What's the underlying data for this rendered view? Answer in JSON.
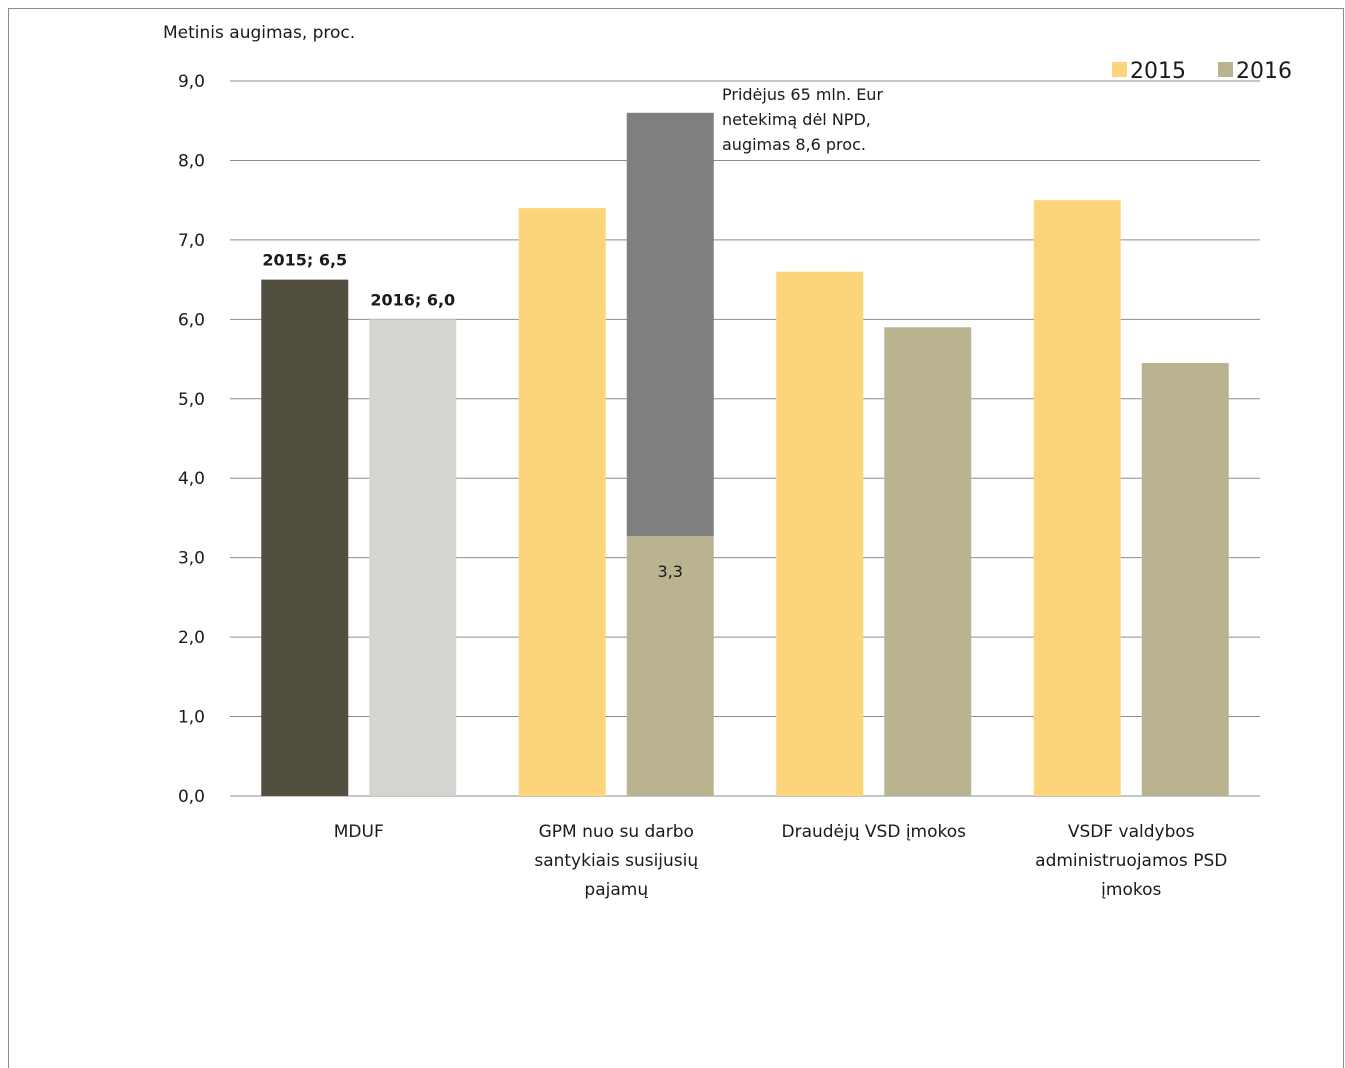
{
  "chart_data": {
    "type": "bar",
    "ylabel": "Metinis augimas, proc.",
    "ylim": [
      0,
      9
    ],
    "yticks": [
      "0,0",
      "1,0",
      "2,0",
      "3,0",
      "4,0",
      "5,0",
      "6,0",
      "7,0",
      "8,0",
      "9,0"
    ],
    "grid": true,
    "legend_position": "top-right",
    "categories": [
      [
        "MDUF"
      ],
      [
        "GPM nuo  su darbo",
        "santykiais susijusių",
        "pajamų"
      ],
      [
        "Draudėjų VSD įmokos"
      ],
      [
        "VSDF valdybos",
        "administruojamos PSD",
        "įmokos"
      ]
    ],
    "series": [
      {
        "name": "2015",
        "values": [
          6.5,
          7.4,
          6.6,
          7.5
        ]
      },
      {
        "name": "2016",
        "values": [
          6.0,
          3.27,
          5.9,
          5.45
        ]
      }
    ],
    "extra_segment": {
      "category_index": 1,
      "series_index": 1,
      "from": 3.27,
      "to": 8.6,
      "color": "#7f7f7f"
    },
    "point_colors": [
      {
        "category_index": 0,
        "series_index": 0,
        "color": "#524f40"
      },
      {
        "category_index": 0,
        "series_index": 1,
        "color": "#d4d4d0"
      }
    ],
    "data_labels": [
      {
        "category_index": 0,
        "series_index": 0,
        "text": "2015; 6,5",
        "bold": true
      },
      {
        "category_index": 0,
        "series_index": 1,
        "text": "2016; 6,0",
        "bold": true
      },
      {
        "category_index": 1,
        "series_index": 1,
        "text": "3,3",
        "bold": false,
        "inside": true
      }
    ],
    "annotation": {
      "lines": [
        "Pridėjus 65 mln. Eur",
        "netekimą dėl NPD,",
        "augimas 8,6 proc."
      ]
    },
    "colors": {
      "2015": "#fcd57a",
      "2016": "#bab38f",
      "grid": "#8c8c8c",
      "text": "#1a1a1a"
    }
  }
}
